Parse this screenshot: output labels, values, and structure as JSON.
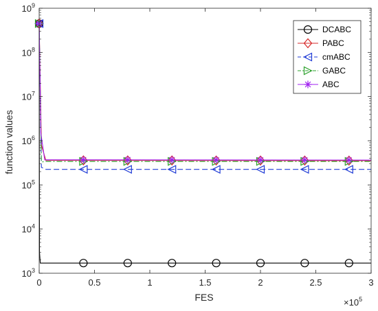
{
  "chart_data": {
    "type": "line",
    "xlabel": "FES",
    "ylabel": "function values",
    "x_multiplier": {
      "base": "×10",
      "exponent": "5"
    },
    "xlim": [
      0,
      3
    ],
    "ylim_log10": [
      3,
      9
    ],
    "yscale": "log",
    "grid": false,
    "legend_position": "top-right",
    "x_ticks": [
      {
        "value": 0,
        "label": "0"
      },
      {
        "value": 0.5,
        "label": "0.5"
      },
      {
        "value": 1,
        "label": "1"
      },
      {
        "value": 1.5,
        "label": "1.5"
      },
      {
        "value": 2,
        "label": "2"
      },
      {
        "value": 2.5,
        "label": "2.5"
      },
      {
        "value": 3,
        "label": "3"
      }
    ],
    "y_ticks": [
      {
        "exp": 3,
        "base": "10",
        "sup": "3"
      },
      {
        "exp": 4,
        "base": "10",
        "sup": "4"
      },
      {
        "exp": 5,
        "base": "10",
        "sup": "5"
      },
      {
        "exp": 6,
        "base": "10",
        "sup": "6"
      },
      {
        "exp": 7,
        "base": "10",
        "sup": "7"
      },
      {
        "exp": 8,
        "base": "10",
        "sup": "8"
      },
      {
        "exp": 9,
        "base": "10",
        "sup": "9"
      }
    ],
    "series": [
      {
        "name": "DCABC",
        "color": "#000000",
        "dash": "solid",
        "marker": "circle",
        "points": [
          [
            0,
            450000000
          ],
          [
            0.003,
            3000
          ],
          [
            0.01,
            1700
          ],
          [
            3,
            1700
          ]
        ],
        "markers_x": [
          0,
          0.4,
          0.8,
          1.2,
          1.6,
          2.0,
          2.4,
          2.8
        ]
      },
      {
        "name": "PABC",
        "color": "#d62728",
        "dash": "solid",
        "marker": "diamond",
        "points": [
          [
            0,
            450000000
          ],
          [
            0.02,
            800000
          ],
          [
            0.06,
            360000
          ],
          [
            3,
            355000
          ]
        ],
        "markers_x": [
          0,
          0.4,
          0.8,
          1.2,
          1.6,
          2.0,
          2.4,
          2.8
        ]
      },
      {
        "name": "cmABC",
        "color": "#1f3bd6",
        "dash": "dashed",
        "marker": "triangle-left",
        "points": [
          [
            0,
            450000000
          ],
          [
            0.02,
            250000
          ],
          [
            0.06,
            225000
          ],
          [
            3,
            225000
          ]
        ],
        "markers_x": [
          0,
          0.4,
          0.8,
          1.2,
          1.6,
          2.0,
          2.4,
          2.8
        ]
      },
      {
        "name": "GABC",
        "color": "#2ca02c",
        "dash": "dashdot",
        "marker": "triangle-right",
        "points": [
          [
            0,
            450000000
          ],
          [
            0.02,
            330000
          ],
          [
            0.06,
            340000
          ],
          [
            3,
            340000
          ]
        ],
        "markers_x": [
          0,
          0.4,
          0.8,
          1.2,
          1.6,
          2.0,
          2.4,
          2.8
        ]
      },
      {
        "name": "ABC",
        "color": "#a020f0",
        "dash": "solid",
        "marker": "star",
        "points": [
          [
            0,
            450000000
          ],
          [
            0.015,
            1500000
          ],
          [
            0.05,
            370000
          ],
          [
            3,
            365000
          ]
        ],
        "markers_x": [
          0,
          0.4,
          0.8,
          1.2,
          1.6,
          2.0,
          2.4,
          2.8
        ]
      }
    ]
  }
}
